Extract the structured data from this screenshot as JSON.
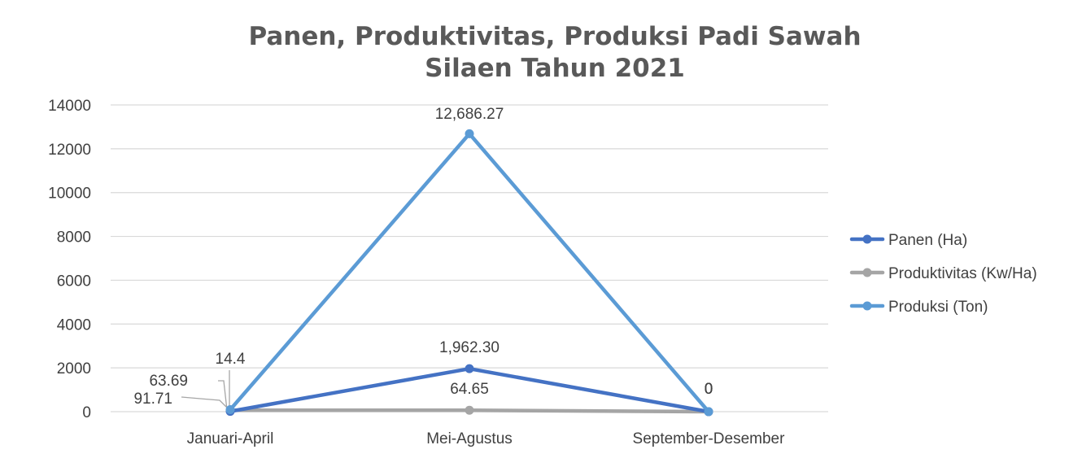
{
  "chart_data": {
    "type": "line",
    "title_lines": [
      "Panen, Produktivitas, Produksi Padi Sawah",
      "Silaen Tahun 2021"
    ],
    "categories": [
      "Januari-April",
      "Mei-Agustus",
      "September-Desember"
    ],
    "ylim": [
      0,
      14000
    ],
    "yticks": [
      0,
      2000,
      4000,
      6000,
      8000,
      10000,
      12000,
      14000
    ],
    "grid": true,
    "legend_position": "right",
    "series": [
      {
        "name": "Panen (Ha)",
        "color": "#4472C4",
        "values": [
          14.4,
          1962.3,
          0
        ],
        "labels": [
          "14.4",
          "1,962.30",
          "0"
        ]
      },
      {
        "name": "Produktivitas (Kw/Ha)",
        "color": "#A5A5A5",
        "values": [
          63.69,
          64.65,
          0
        ],
        "labels": [
          "63.69",
          "64.65",
          "0"
        ]
      },
      {
        "name": "Produksi (Ton)",
        "color": "#5B9BD5",
        "values": [
          91.71,
          12686.27,
          0
        ],
        "labels": [
          "91.71",
          "12,686.27",
          "0"
        ]
      }
    ]
  }
}
